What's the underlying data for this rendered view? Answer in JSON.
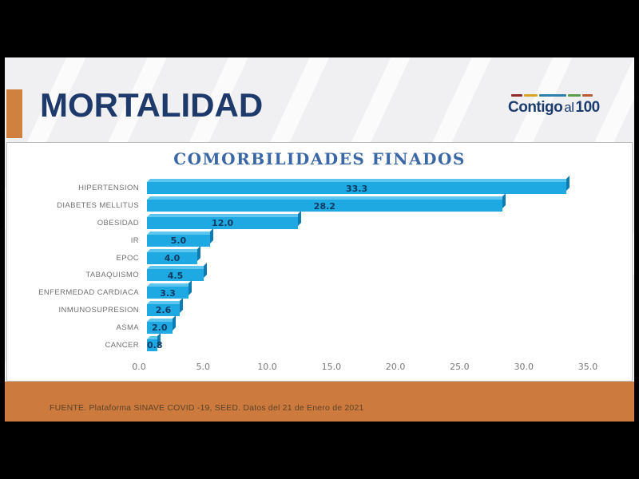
{
  "slide": {
    "title": "MORTALIDAD",
    "logo": {
      "word1": "Contigo",
      "word2": "al",
      "word3": "100"
    },
    "footer_source": "FUENTE. Plataforma SINAVE COVID -19, SEED. Datos del 21 de Enero de 2021"
  },
  "chart_data": {
    "type": "bar",
    "orientation": "horizontal",
    "title": "COMORBILIDADES FINADOS",
    "categories": [
      "HIPERTENSION",
      "DIABETES MELLITUS",
      "OBESIDAD",
      "IR",
      "EPOC",
      "TABAQUISMO",
      "ENFERMEDAD CARDIACA",
      "INMUNOSUPRESION",
      "ASMA",
      "CANCER"
    ],
    "values": [
      33.3,
      28.2,
      12.0,
      5.0,
      4.0,
      4.5,
      3.3,
      2.6,
      2.0,
      0.8
    ],
    "value_labels": [
      "33.3",
      "28.2",
      "12.0",
      "5.0",
      "4.0",
      "4.5",
      "3.3",
      "2.6",
      "2.0",
      "0.8"
    ],
    "xlim": [
      0,
      35
    ],
    "x_ticks": [
      "0.0",
      "5.0",
      "10.0",
      "15.0",
      "20.0",
      "25.0",
      "30.0",
      "35.0"
    ],
    "grid": false,
    "legend": false
  },
  "colors": {
    "accent_orange": "#CD7A3E",
    "bar_fill": "#1EA9E2",
    "bar_top_face": "#5CC6EE",
    "bar_side_face": "#0E7CB2",
    "title_navy": "#1D3A6B",
    "chart_title_blue": "#3A67A5",
    "value_label_navy": "#12395F",
    "axis_gray": "#76777A",
    "footer_text_brown": "#5E4326",
    "logo_navy": "#1D3C6E",
    "logo_segments": [
      "#8F2B2B",
      "#D9A427",
      "#2F7FA8",
      "#5B9E4D",
      "#B85C33"
    ]
  }
}
